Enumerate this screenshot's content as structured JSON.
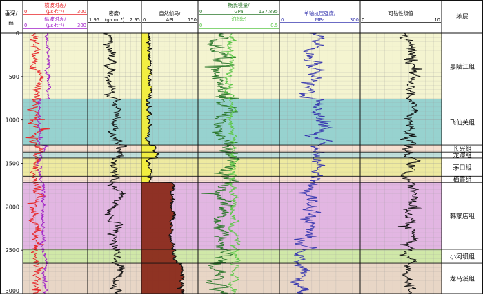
{
  "chart_data": {
    "type": "line",
    "depth": {
      "label": "垂深/",
      "unit": "m",
      "range": [
        0,
        3000
      ],
      "ticks": [
        0,
        500,
        1000,
        1500,
        2000,
        2500,
        3000
      ]
    },
    "tracks": [
      {
        "curves": [
          {
            "name": "横波时差/",
            "unit": "(μs·ft⁻¹)",
            "min": 0,
            "max": 300,
            "color": "#e8262a"
          },
          {
            "name": "纵波时差/",
            "unit": "(μs·ft⁻¹)",
            "min": 0,
            "max": 300,
            "color": "#a020c8"
          }
        ]
      },
      {
        "curves": [
          {
            "name": "密度/",
            "unit": "(g·cm⁻³)",
            "min": 1.95,
            "max": 2.95,
            "color": "#111111"
          }
        ]
      },
      {
        "curves": [
          {
            "name": "自然伽马/",
            "unit": "API",
            "min": 0,
            "max": 150,
            "color": "#111111"
          }
        ]
      },
      {
        "curves": [
          {
            "name": "杨氏模量/",
            "unit": "GPa",
            "min": 0,
            "max": 137.895,
            "color": "#2f7a2f"
          },
          {
            "name": "泊松比",
            "unit": "",
            "min": 0,
            "max": 0.5,
            "color": "#5ec84a"
          }
        ]
      },
      {
        "curves": [
          {
            "name": "单轴抗压强度/",
            "unit": "MPa",
            "min": 0,
            "max": 300,
            "color": "#3a3ab0"
          }
        ]
      },
      {
        "curves": [
          {
            "name": "可钻性级值",
            "unit": "",
            "min": 0,
            "max": 10,
            "color": "#111111"
          }
        ]
      }
    ],
    "formation_header": "地层",
    "formations": [
      {
        "name": "嘉陵江组",
        "top": 0,
        "base": 760,
        "color": "#f4f4d0"
      },
      {
        "name": "飞仙关组",
        "top": 760,
        "base": 1290,
        "color": "#97d2cf"
      },
      {
        "name": "长兴组",
        "top": 1290,
        "base": 1370,
        "color": "#f6dfd0"
      },
      {
        "name": "龙潭组",
        "top": 1370,
        "base": 1440,
        "color": "#bfe0dc"
      },
      {
        "name": "茅口组",
        "top": 1440,
        "base": 1650,
        "color": "#eeeaa0"
      },
      {
        "name": "栖霞组",
        "top": 1650,
        "base": 1720,
        "color": "#f6dfd0"
      },
      {
        "name": "韩家店组",
        "top": 1720,
        "base": 2490,
        "color": "#e2b6e2"
      },
      {
        "name": "小河坝组",
        "top": 2490,
        "base": 2650,
        "color": "#d0e8a8"
      },
      {
        "name": "龙马溪组",
        "top": 2650,
        "base": 3000,
        "color": "#e8d6c6"
      }
    ]
  }
}
